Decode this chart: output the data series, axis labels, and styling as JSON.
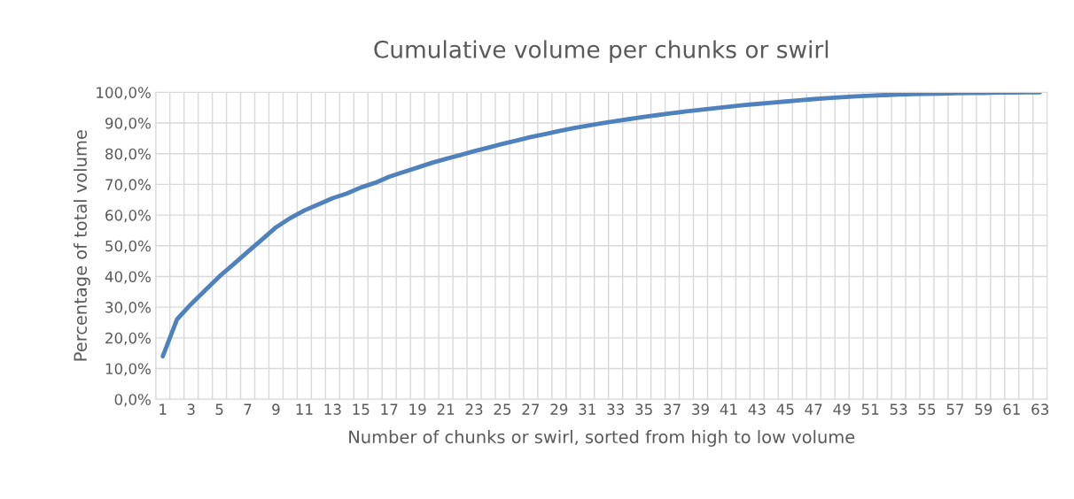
{
  "chart_data": {
    "type": "line",
    "title": "Cumulative volume per chunks or swirl",
    "xlabel": "Number of chunks or swirl, sorted from high to low volume",
    "ylabel": "Percentage of total volume",
    "categories": [
      "1",
      null,
      "3",
      null,
      "5",
      null,
      "7",
      null,
      "9",
      null,
      "11",
      null,
      "13",
      null,
      "15",
      null,
      "17",
      null,
      "19",
      null,
      "21",
      null,
      "23",
      null,
      "25",
      null,
      "27",
      null,
      "29",
      null,
      "31",
      null,
      "33",
      null,
      "35",
      null,
      "37",
      null,
      "39",
      null,
      "41",
      null,
      "43",
      null,
      "45",
      null,
      "47",
      null,
      "49",
      null,
      "51",
      null,
      "53",
      null,
      "55",
      null,
      "57",
      null,
      "59",
      null,
      "61",
      null,
      "63"
    ],
    "series": [
      {
        "color": "#4f81bd",
        "values": [
          14,
          26,
          31,
          35.5,
          40,
          44,
          48,
          52,
          56,
          59,
          61.5,
          63.5,
          65.5,
          67,
          69,
          70.5,
          72.5,
          74,
          75.5,
          77,
          78.3,
          79.5,
          80.8,
          82,
          83.2,
          84.3,
          85.4,
          86.4,
          87.4,
          88.3,
          89.1,
          89.9,
          90.6,
          91.3,
          92,
          92.6,
          93.2,
          93.8,
          94.3,
          94.8,
          95.3,
          95.8,
          96.2,
          96.6,
          97,
          97.4,
          97.8,
          98.1,
          98.4,
          98.7,
          98.9,
          99.1,
          99.3,
          99.4,
          99.5,
          99.6,
          99.7,
          99.8,
          99.8,
          99.9,
          99.9,
          100,
          100
        ]
      }
    ],
    "ylim": [
      0,
      100
    ],
    "yticks": [
      {
        "value": 0,
        "label": "0,0%"
      },
      {
        "value": 10,
        "label": "10,0%"
      },
      {
        "value": 20,
        "label": "20,0%"
      },
      {
        "value": 30,
        "label": "30,0%"
      },
      {
        "value": 40,
        "label": "40,0%"
      },
      {
        "value": 50,
        "label": "50,0%"
      },
      {
        "value": 60,
        "label": "60,0%"
      },
      {
        "value": 70,
        "label": "70,0%"
      },
      {
        "value": 80,
        "label": "80,0%"
      },
      {
        "value": 90,
        "label": "90,0%"
      },
      {
        "value": 100,
        "label": "100,0%"
      }
    ],
    "grid": true,
    "legend": false,
    "marker": "none",
    "line_style": "solid"
  }
}
